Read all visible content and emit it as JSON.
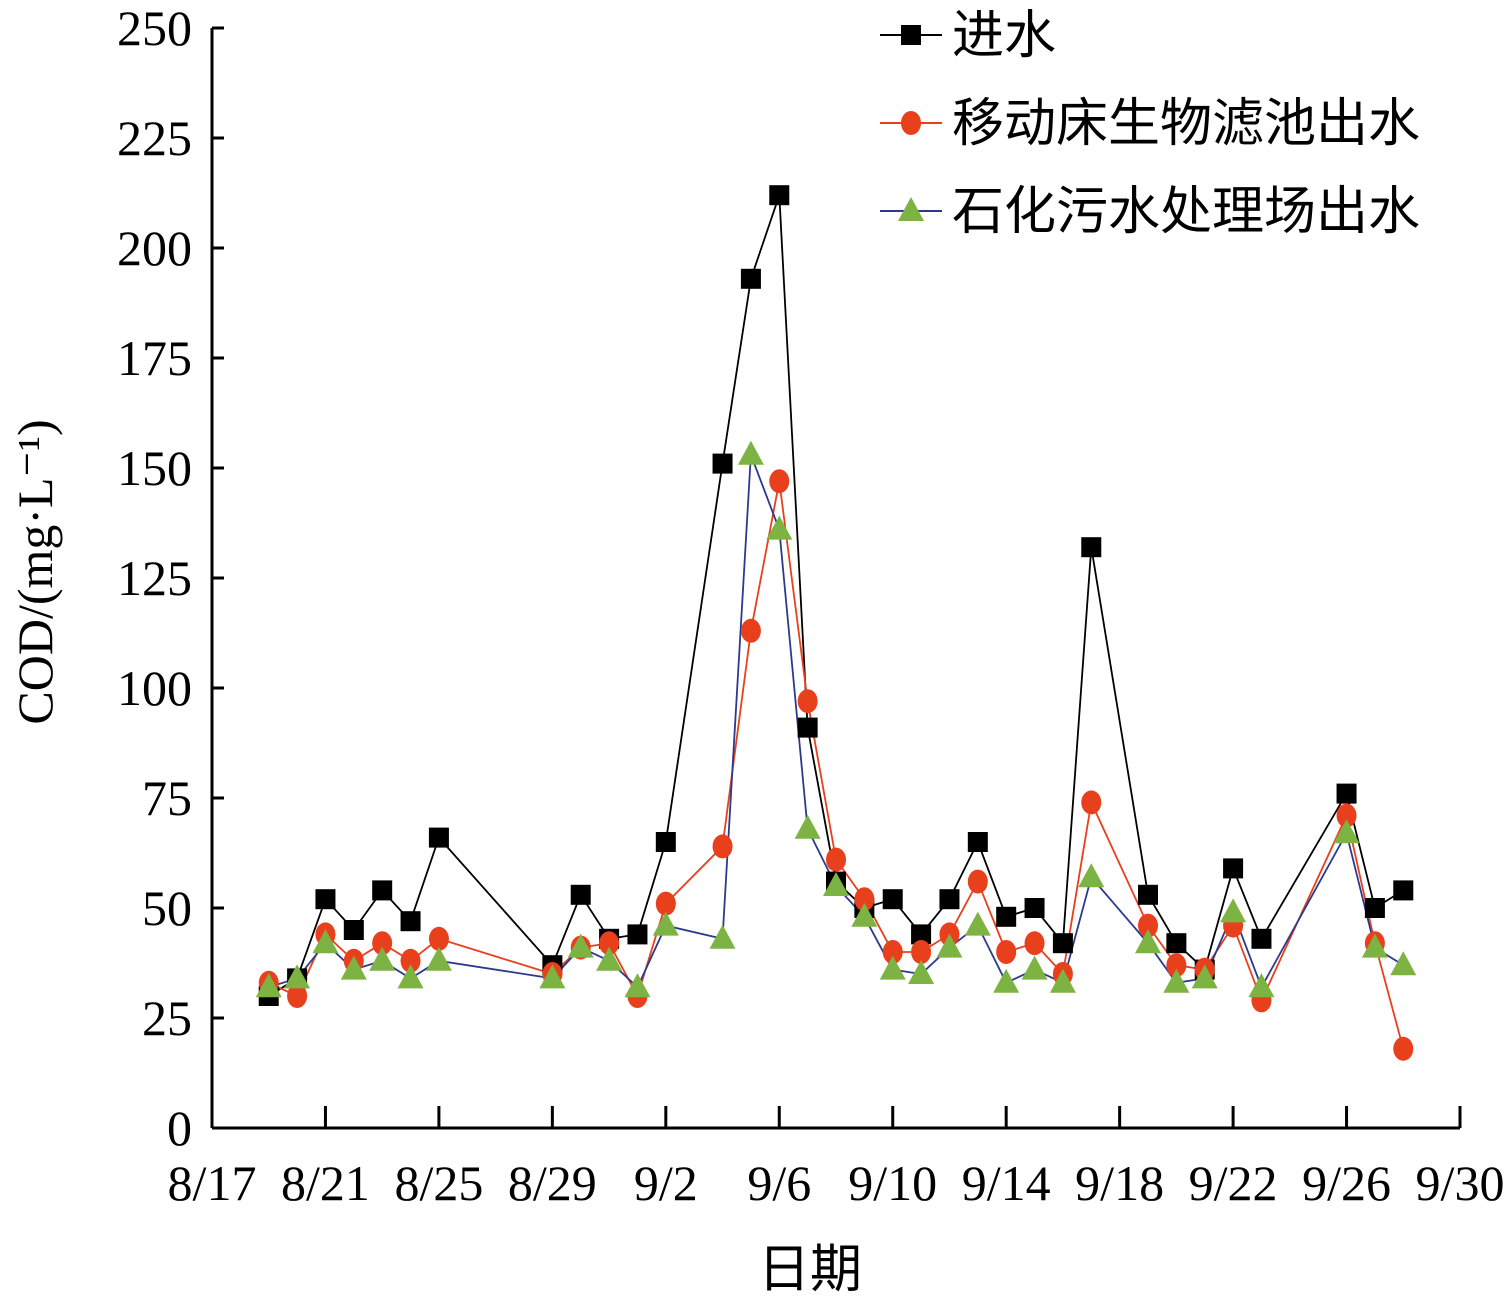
{
  "chart_data": {
    "type": "line",
    "title": "",
    "xlabel": "日期",
    "ylabel": "COD/(mg·L⁻¹)",
    "ylim": [
      0,
      250
    ],
    "yticks": [
      0,
      25,
      50,
      75,
      100,
      125,
      150,
      175,
      200,
      225,
      250
    ],
    "xlim": [
      "8/17",
      "9/30"
    ],
    "xticks": [
      "8/17",
      "8/21",
      "8/25",
      "8/29",
      "9/2",
      "9/6",
      "9/10",
      "9/14",
      "9/18",
      "9/22",
      "9/26",
      "9/30"
    ],
    "grid": false,
    "legend_position": "top-right",
    "series": [
      {
        "name": "进水",
        "color": "#000000",
        "marker": "square",
        "x": [
          "8/19",
          "8/20",
          "8/21",
          "8/22",
          "8/23",
          "8/24",
          "8/25",
          "8/29",
          "8/30",
          "8/31",
          "9/1",
          "9/2",
          "9/4",
          "9/5",
          "9/6",
          "9/7",
          "9/8",
          "9/9",
          "9/10",
          "9/11",
          "9/12",
          "9/13",
          "9/14",
          "9/15",
          "9/16",
          "9/17",
          "9/19",
          "9/20",
          "9/21",
          "9/22",
          "9/23",
          "9/26",
          "9/27",
          "9/28"
        ],
        "values": [
          30,
          34,
          52,
          45,
          54,
          47,
          66,
          37,
          53,
          43,
          44,
          65,
          151,
          193,
          212,
          91,
          56,
          50,
          52,
          44,
          52,
          65,
          48,
          50,
          42,
          132,
          53,
          42,
          36,
          59,
          43,
          76,
          50,
          54
        ]
      },
      {
        "name": "移动床生物滤池出水",
        "color": "#e8401c",
        "marker": "circle",
        "x": [
          "8/19",
          "8/20",
          "8/21",
          "8/22",
          "8/23",
          "8/24",
          "8/25",
          "8/29",
          "8/30",
          "8/31",
          "9/1",
          "9/2",
          "9/4",
          "9/5",
          "9/6",
          "9/7",
          "9/8",
          "9/9",
          "9/10",
          "9/11",
          "9/12",
          "9/13",
          "9/14",
          "9/15",
          "9/16",
          "9/17",
          "9/19",
          "9/20",
          "9/21",
          "9/22",
          "9/23",
          "9/26",
          "9/27",
          "9/28"
        ],
        "values": [
          33,
          30,
          44,
          38,
          42,
          38,
          43,
          35,
          41,
          42,
          30,
          51,
          64,
          113,
          147,
          97,
          61,
          52,
          40,
          40,
          44,
          56,
          40,
          42,
          35,
          74,
          46,
          37,
          36,
          46,
          29,
          71,
          42,
          18
        ]
      },
      {
        "name": "石化污水处理场出水",
        "color": "#7cb342",
        "line_color": "#2b3a8f",
        "marker": "triangle",
        "x": [
          "8/19",
          "8/20",
          "8/21",
          "8/22",
          "8/23",
          "8/24",
          "8/25",
          "8/29",
          "8/30",
          "8/31",
          "9/1",
          "9/2",
          "9/4",
          "9/5",
          "9/6",
          "9/7",
          "9/8",
          "9/9",
          "9/10",
          "9/11",
          "9/12",
          "9/13",
          "9/14",
          "9/15",
          "9/16",
          "9/17",
          "9/19",
          "9/20",
          "9/21",
          "9/22",
          "9/23",
          "9/26",
          "9/27",
          "9/28"
        ],
        "values": [
          32,
          34,
          42,
          36,
          38,
          34,
          38,
          34,
          41,
          38,
          32,
          46,
          43,
          153,
          136,
          68,
          55,
          48,
          36,
          35,
          41,
          46,
          33,
          36,
          33,
          57,
          42,
          33,
          34,
          49,
          32,
          67,
          41,
          37
        ]
      }
    ]
  }
}
